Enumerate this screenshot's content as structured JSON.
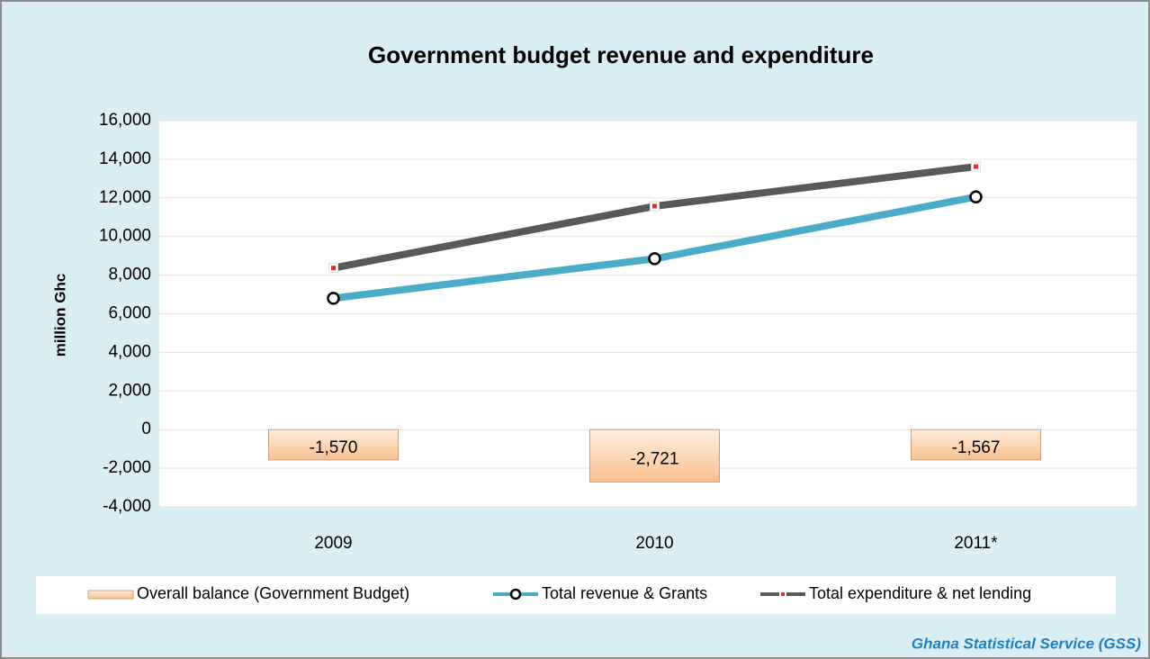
{
  "chart_data": {
    "type": "combo",
    "title": "Government budget revenue and expenditure",
    "y_label": "million Ghc",
    "source": "Ghana Statistical Service (GSS)",
    "categories": [
      "2009",
      "2010",
      "2011*"
    ],
    "series": [
      {
        "name": "Overall balance (Government Budget)",
        "type": "bar",
        "color": "#fac08f",
        "values": [
          -1570,
          -2721,
          -1567
        ],
        "value_labels": [
          "-1,570",
          "-2,721",
          "-1,567"
        ]
      },
      {
        "name": "Total revenue & Grants",
        "type": "line",
        "marker": "circle",
        "color": "#4bacc6",
        "values": [
          6800,
          8850,
          12050
        ]
      },
      {
        "name": "Total expenditure & net lending",
        "type": "line",
        "marker": "square",
        "color": "#595959",
        "values": [
          8370,
          11570,
          13620
        ]
      }
    ],
    "ylim": [
      -4000,
      16000
    ],
    "yticks": [
      {
        "value": -4000,
        "label": "-4,000"
      },
      {
        "value": -2000,
        "label": "-2,000"
      },
      0,
      {
        "value": 2000,
        "label": "2,000"
      },
      {
        "value": 4000,
        "label": "4,000"
      },
      {
        "value": 6000,
        "label": "6,000"
      },
      {
        "value": 8000,
        "label": "8,000"
      },
      {
        "value": 10000,
        "label": "10,000"
      },
      {
        "value": 12000,
        "label": "12,000"
      },
      {
        "value": 14000,
        "label": "14,000"
      },
      {
        "value": 16000,
        "label": "16,000"
      }
    ],
    "grid": true
  }
}
